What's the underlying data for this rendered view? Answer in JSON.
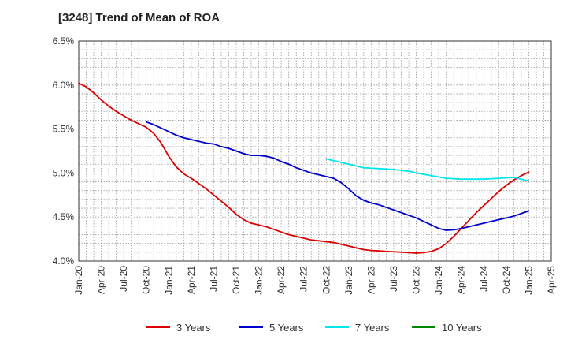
{
  "chart_data": {
    "type": "line",
    "title": "[3248]  Trend of Mean of ROA",
    "xlabel": "",
    "ylabel": "",
    "x_ticks": [
      "Jan-20",
      "Apr-20",
      "Jul-20",
      "Oct-20",
      "Jan-21",
      "Apr-21",
      "Jul-21",
      "Oct-21",
      "Jan-22",
      "Apr-22",
      "Jul-22",
      "Oct-22",
      "Jan-23",
      "Apr-23",
      "Jul-23",
      "Oct-23",
      "Jan-24",
      "Apr-24",
      "Jul-24",
      "Oct-24",
      "Jan-25",
      "Apr-25"
    ],
    "y_ticks": [
      "4.0%",
      "4.5%",
      "5.0%",
      "5.5%",
      "6.0%",
      "6.5%"
    ],
    "ylim": [
      4.0,
      6.5
    ],
    "grid": true,
    "legend_position": "bottom",
    "colors": {
      "3 Years": "#dd0000",
      "5 Years": "#0000cc",
      "7 Years": "#00e5ee",
      "10 Years": "#008800"
    },
    "series": [
      {
        "name": "3 Years",
        "color": "#dd0000",
        "points": [
          [
            "Jan-20",
            6.02
          ],
          [
            "Feb-20",
            5.98
          ],
          [
            "Mar-20",
            5.91
          ],
          [
            "Apr-20",
            5.83
          ],
          [
            "May-20",
            5.76
          ],
          [
            "Jun-20",
            5.7
          ],
          [
            "Jul-20",
            5.65
          ],
          [
            "Aug-20",
            5.6
          ],
          [
            "Sep-20",
            5.56
          ],
          [
            "Oct-20",
            5.52
          ],
          [
            "Nov-20",
            5.45
          ],
          [
            "Dec-20",
            5.34
          ],
          [
            "Jan-21",
            5.19
          ],
          [
            "Feb-21",
            5.07
          ],
          [
            "Mar-21",
            4.99
          ],
          [
            "Apr-21",
            4.94
          ],
          [
            "May-21",
            4.88
          ],
          [
            "Jun-21",
            4.82
          ],
          [
            "Jul-21",
            4.75
          ],
          [
            "Aug-21",
            4.68
          ],
          [
            "Sep-21",
            4.61
          ],
          [
            "Oct-21",
            4.53
          ],
          [
            "Nov-21",
            4.47
          ],
          [
            "Dec-21",
            4.43
          ],
          [
            "Jan-22",
            4.41
          ],
          [
            "Feb-22",
            4.39
          ],
          [
            "Mar-22",
            4.36
          ],
          [
            "Apr-22",
            4.33
          ],
          [
            "May-22",
            4.3
          ],
          [
            "Jun-22",
            4.28
          ],
          [
            "Jul-22",
            4.26
          ],
          [
            "Aug-22",
            4.24
          ],
          [
            "Sep-22",
            4.23
          ],
          [
            "Oct-22",
            4.22
          ],
          [
            "Nov-22",
            4.21
          ],
          [
            "Dec-22",
            4.19
          ],
          [
            "Jan-23",
            4.17
          ],
          [
            "Feb-23",
            4.15
          ],
          [
            "Mar-23",
            4.13
          ],
          [
            "Apr-23",
            4.12
          ],
          [
            "May-23",
            4.115
          ],
          [
            "Jun-23",
            4.11
          ],
          [
            "Jul-23",
            4.105
          ],
          [
            "Aug-23",
            4.1
          ],
          [
            "Sep-23",
            4.095
          ],
          [
            "Oct-23",
            4.09
          ],
          [
            "Nov-23",
            4.095
          ],
          [
            "Dec-23",
            4.11
          ],
          [
            "Jan-24",
            4.14
          ],
          [
            "Feb-24",
            4.2
          ],
          [
            "Mar-24",
            4.28
          ],
          [
            "Apr-24",
            4.37
          ],
          [
            "May-24",
            4.46
          ],
          [
            "Jun-24",
            4.55
          ],
          [
            "Jul-24",
            4.63
          ],
          [
            "Aug-24",
            4.71
          ],
          [
            "Sep-24",
            4.79
          ],
          [
            "Oct-24",
            4.86
          ],
          [
            "Nov-24",
            4.92
          ],
          [
            "Dec-24",
            4.97
          ],
          [
            "Jan-25",
            5.01
          ]
        ]
      },
      {
        "name": "5 Years",
        "color": "#0000cc",
        "points": [
          [
            "Oct-20",
            5.58
          ],
          [
            "Nov-20",
            5.55
          ],
          [
            "Dec-20",
            5.51
          ],
          [
            "Jan-21",
            5.47
          ],
          [
            "Feb-21",
            5.43
          ],
          [
            "Mar-21",
            5.4
          ],
          [
            "Apr-21",
            5.38
          ],
          [
            "May-21",
            5.36
          ],
          [
            "Jun-21",
            5.34
          ],
          [
            "Jul-21",
            5.33
          ],
          [
            "Aug-21",
            5.3
          ],
          [
            "Sep-21",
            5.28
          ],
          [
            "Oct-21",
            5.25
          ],
          [
            "Nov-21",
            5.22
          ],
          [
            "Dec-21",
            5.2
          ],
          [
            "Jan-22",
            5.2
          ],
          [
            "Feb-22",
            5.19
          ],
          [
            "Mar-22",
            5.17
          ],
          [
            "Apr-22",
            5.13
          ],
          [
            "May-22",
            5.1
          ],
          [
            "Jun-22",
            5.06
          ],
          [
            "Jul-22",
            5.03
          ],
          [
            "Aug-22",
            5.0
          ],
          [
            "Sep-22",
            4.98
          ],
          [
            "Oct-22",
            4.96
          ],
          [
            "Nov-22",
            4.94
          ],
          [
            "Dec-22",
            4.89
          ],
          [
            "Jan-23",
            4.82
          ],
          [
            "Feb-23",
            4.74
          ],
          [
            "Mar-23",
            4.69
          ],
          [
            "Apr-23",
            4.66
          ],
          [
            "May-23",
            4.64
          ],
          [
            "Jun-23",
            4.61
          ],
          [
            "Jul-23",
            4.58
          ],
          [
            "Aug-23",
            4.55
          ],
          [
            "Sep-23",
            4.52
          ],
          [
            "Oct-23",
            4.49
          ],
          [
            "Nov-23",
            4.45
          ],
          [
            "Dec-23",
            4.41
          ],
          [
            "Jan-24",
            4.37
          ],
          [
            "Feb-24",
            4.35
          ],
          [
            "Mar-24",
            4.355
          ],
          [
            "Apr-24",
            4.37
          ],
          [
            "May-24",
            4.39
          ],
          [
            "Jun-24",
            4.41
          ],
          [
            "Jul-24",
            4.43
          ],
          [
            "Aug-24",
            4.45
          ],
          [
            "Sep-24",
            4.47
          ],
          [
            "Oct-24",
            4.49
          ],
          [
            "Nov-24",
            4.51
          ],
          [
            "Dec-24",
            4.54
          ],
          [
            "Jan-25",
            4.57
          ]
        ]
      },
      {
        "name": "7 Years",
        "color": "#00e5ee",
        "points": [
          [
            "Oct-22",
            5.16
          ],
          [
            "Nov-22",
            5.14
          ],
          [
            "Dec-22",
            5.12
          ],
          [
            "Jan-23",
            5.1
          ],
          [
            "Feb-23",
            5.08
          ],
          [
            "Mar-23",
            5.06
          ],
          [
            "Apr-23",
            5.055
          ],
          [
            "May-23",
            5.05
          ],
          [
            "Jun-23",
            5.045
          ],
          [
            "Jul-23",
            5.04
          ],
          [
            "Aug-23",
            5.03
          ],
          [
            "Sep-23",
            5.02
          ],
          [
            "Oct-23",
            5.0
          ],
          [
            "Nov-23",
            4.985
          ],
          [
            "Dec-23",
            4.97
          ],
          [
            "Jan-24",
            4.955
          ],
          [
            "Feb-24",
            4.94
          ],
          [
            "Mar-24",
            4.935
          ],
          [
            "Apr-24",
            4.93
          ],
          [
            "May-24",
            4.93
          ],
          [
            "Jun-24",
            4.93
          ],
          [
            "Jul-24",
            4.93
          ],
          [
            "Aug-24",
            4.935
          ],
          [
            "Sep-24",
            4.94
          ],
          [
            "Oct-24",
            4.945
          ],
          [
            "Nov-24",
            4.95
          ],
          [
            "Dec-24",
            4.93
          ],
          [
            "Jan-25",
            4.91
          ]
        ]
      },
      {
        "name": "10 Years",
        "color": "#008800",
        "points": []
      }
    ]
  }
}
